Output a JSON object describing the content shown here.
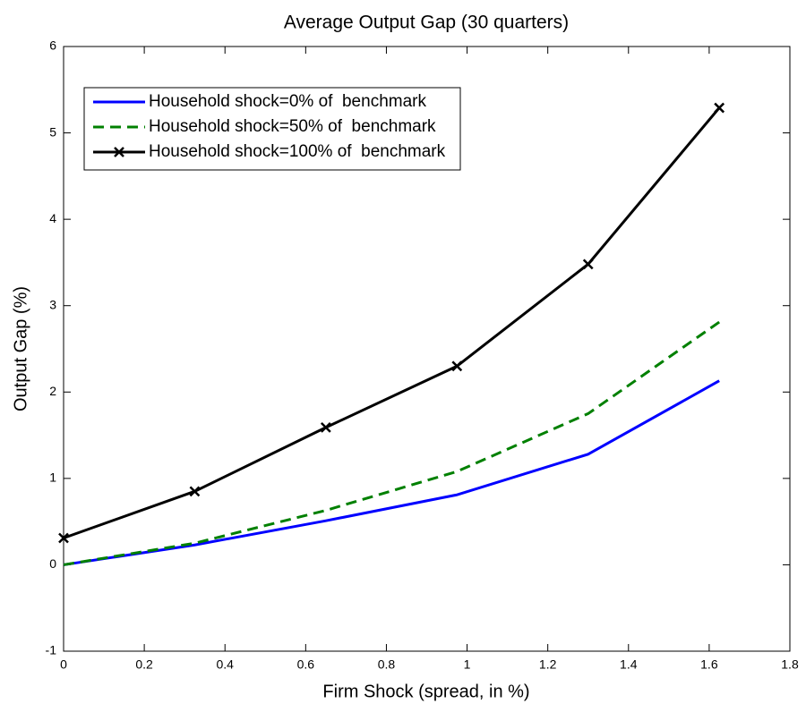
{
  "chart_data": {
    "type": "line",
    "title": "Average Output Gap (30 quarters)",
    "x_label": "Firm Shock (spread, in %)",
    "y_label": "Output Gap (%)",
    "x": [
      0,
      0.325,
      0.65,
      0.975,
      1.3,
      1.625
    ],
    "series": [
      {
        "name": "Household shock=0% of  benchmark",
        "color": "#0000ff",
        "line_style": "solid",
        "marker": null,
        "values": [
          0,
          0.23,
          0.51,
          0.81,
          1.28,
          2.13
        ]
      },
      {
        "name": "Household shock=50% of  benchmark",
        "color": "#008000",
        "line_style": "dashed",
        "marker": null,
        "values": [
          0,
          0.25,
          0.63,
          1.08,
          1.75,
          2.81
        ]
      },
      {
        "name": "Household shock=100% of  benchmark",
        "color": "#000000",
        "line_style": "solid",
        "marker": "x",
        "values": [
          0.31,
          0.85,
          1.59,
          2.3,
          3.48,
          5.29
        ]
      }
    ],
    "xlim": [
      0,
      1.8
    ],
    "xticks": [
      0,
      0.2,
      0.4,
      0.6,
      0.8,
      1,
      1.2,
      1.4,
      1.6,
      1.8
    ],
    "ylim": [
      -1,
      6
    ],
    "yticks": [
      -1,
      0,
      1,
      2,
      3,
      4,
      5,
      6
    ],
    "grid": false,
    "legend": "upper left"
  }
}
